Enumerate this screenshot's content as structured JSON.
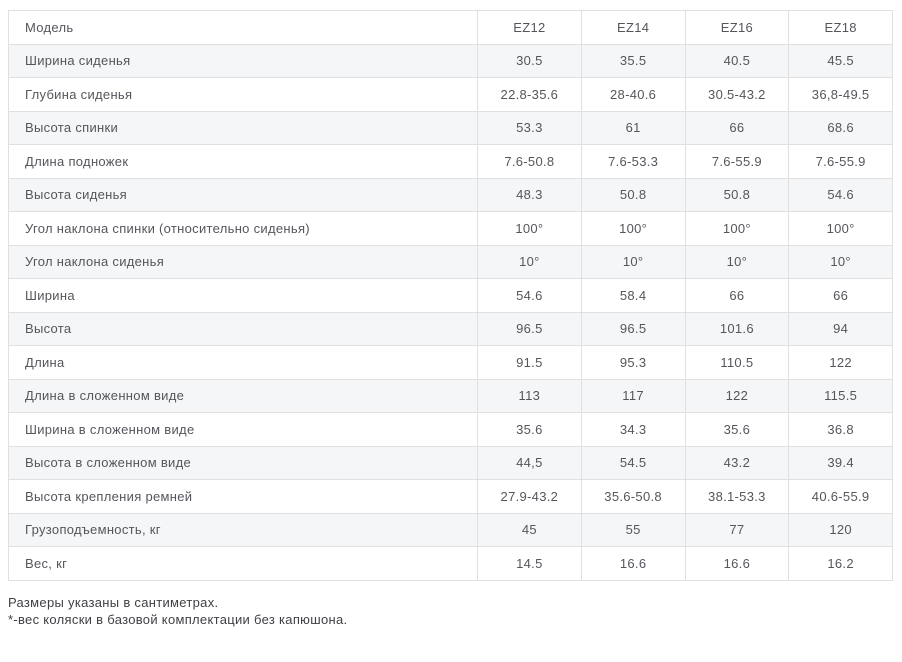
{
  "table": {
    "header": [
      "Модель",
      "EZ12",
      "EZ14",
      "EZ16",
      "EZ18"
    ],
    "rows": [
      {
        "label": "Ширина сиденья",
        "values": [
          "30.5",
          "35.5",
          "40.5",
          "45.5"
        ]
      },
      {
        "label": "Глубина сиденья",
        "values": [
          "22.8-35.6",
          "28-40.6",
          "30.5-43.2",
          "36,8-49.5"
        ]
      },
      {
        "label": "Высота спинки",
        "values": [
          "53.3",
          "61",
          "66",
          "68.6"
        ]
      },
      {
        "label": "Длина подножек",
        "values": [
          "7.6-50.8",
          "7.6-53.3",
          "7.6-55.9",
          "7.6-55.9"
        ]
      },
      {
        "label": "Высота сиденья",
        "values": [
          "48.3",
          "50.8",
          "50.8",
          "54.6"
        ]
      },
      {
        "label": "Угол наклона спинки (относительно сиденья)",
        "values": [
          "100°",
          "100°",
          "100°",
          "100°"
        ]
      },
      {
        "label": "Угол наклона сиденья",
        "values": [
          "10°",
          "10°",
          "10°",
          "10°"
        ]
      },
      {
        "label": "Ширина",
        "values": [
          "54.6",
          "58.4",
          "66",
          "66"
        ]
      },
      {
        "label": "Высота",
        "values": [
          "96.5",
          "96.5",
          "101.6",
          "94"
        ]
      },
      {
        "label": "Длина",
        "values": [
          "91.5",
          "95.3",
          "110.5",
          "122"
        ]
      },
      {
        "label": "Длина в сложенном виде",
        "values": [
          "113",
          "117",
          "122",
          "115.5"
        ]
      },
      {
        "label": "Ширина в сложенном виде",
        "values": [
          "35.6",
          "34.3",
          "35.6",
          "36.8"
        ]
      },
      {
        "label": "Высота в сложенном виде",
        "values": [
          "44,5",
          "54.5",
          "43.2",
          "39.4"
        ]
      },
      {
        "label": "Высота крепления ремней",
        "values": [
          "27.9-43.2",
          "35.6-50.8",
          "38.1-53.3",
          "40.6-55.9"
        ]
      },
      {
        "label": "Грузоподъемность, кг",
        "values": [
          "45",
          "55",
          "77",
          "120"
        ]
      },
      {
        "label": "Вес, кг",
        "values": [
          "14.5",
          "16.6",
          "16.6",
          "16.2"
        ]
      }
    ]
  },
  "footer": {
    "line1": "Размеры указаны в сантиметрах.",
    "line2": "*-вес коляски в базовой комплектации без капюшона."
  },
  "colors": {
    "row_alt_background": "#f4f6f7",
    "border": "#e0e0e0",
    "cell_text": "#55565c",
    "footer_text": "#3f4045"
  }
}
